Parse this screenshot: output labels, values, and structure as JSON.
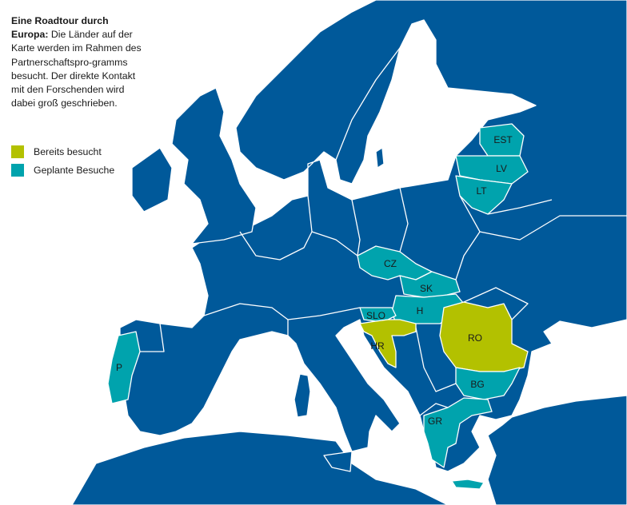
{
  "caption": {
    "title": "Eine Roadtour durch Europa:",
    "text": "Die Länder auf der Karte werden im Rahmen des Partnerschaftspro-gramms besucht. Der direkte Kontakt mit den Forschenden wird dabei groß geschrieben."
  },
  "legend": {
    "visited": "Bereits besucht",
    "planned": "Geplante Besuche"
  },
  "colors": {
    "land": "#00599a",
    "visited": "#b3c100",
    "planned": "#00a3ad",
    "sea": "#ffffff"
  },
  "countries": {
    "est": {
      "label": "EST",
      "status": "planned"
    },
    "lv": {
      "label": "LV",
      "status": "planned"
    },
    "lt": {
      "label": "LT",
      "status": "planned"
    },
    "cz": {
      "label": "CZ",
      "status": "planned"
    },
    "sk": {
      "label": "SK",
      "status": "planned"
    },
    "h": {
      "label": "H",
      "status": "planned"
    },
    "slo": {
      "label": "SLO",
      "status": "planned"
    },
    "hr": {
      "label": "HR",
      "status": "visited"
    },
    "ro": {
      "label": "RO",
      "status": "visited"
    },
    "bg": {
      "label": "BG",
      "status": "planned"
    },
    "gr": {
      "label": "GR",
      "status": "planned"
    },
    "p": {
      "label": "P",
      "status": "planned"
    }
  }
}
